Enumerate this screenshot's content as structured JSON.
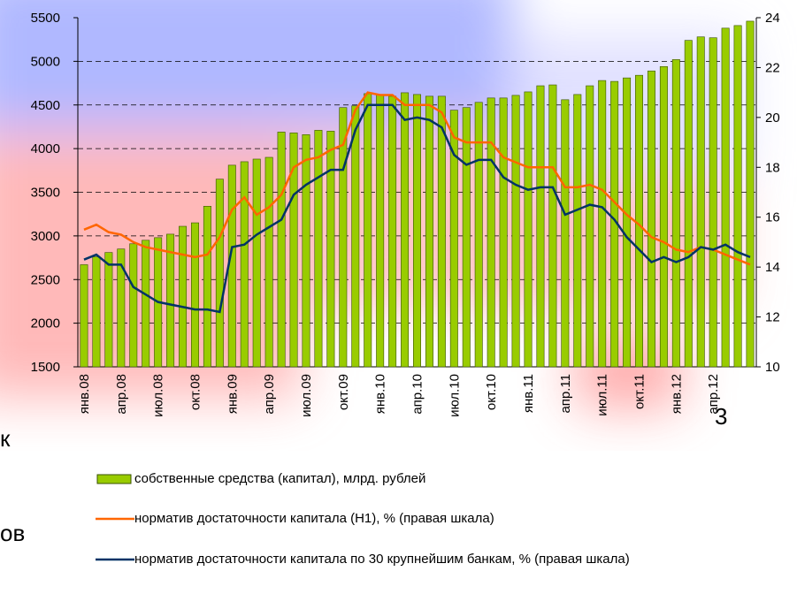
{
  "chart_data": {
    "type": "combo",
    "categories": [
      "янв.08",
      null,
      null,
      "апр.08",
      null,
      null,
      "июл.08",
      null,
      null,
      "окт.08",
      null,
      null,
      "янв.09",
      null,
      null,
      "апр.09",
      null,
      null,
      "июл.09",
      null,
      null,
      "окт.09",
      null,
      null,
      "янв.10",
      null,
      null,
      "апр.10",
      null,
      null,
      "июл.10",
      null,
      null,
      "окт.10",
      null,
      null,
      "янв.11",
      null,
      null,
      "апр.11",
      null,
      null,
      "июл.11",
      null,
      null,
      "окт.11",
      null,
      null,
      "янв.12",
      null,
      null,
      "апр.12",
      null,
      null,
      null
    ],
    "series": [
      {
        "name": "собственные средства (капитал), млрд. рублей",
        "kind": "bar",
        "color": "#99cc00",
        "values": [
          2670,
          2760,
          2810,
          2850,
          2910,
          2950,
          2980,
          3020,
          3110,
          3150,
          3340,
          3650,
          3810,
          3850,
          3880,
          3900,
          4190,
          4180,
          4160,
          4210,
          4200,
          4470,
          4490,
          4630,
          4620,
          4600,
          4640,
          4620,
          4600,
          4600,
          4440,
          4470,
          4530,
          4580,
          4580,
          4610,
          4650,
          4720,
          4730,
          4560,
          4620,
          4720,
          4780,
          4770,
          4810,
          4840,
          4890,
          4940,
          5020,
          5240,
          5280,
          5270,
          5380,
          5410,
          5460
        ]
      },
      {
        "name": "норматив достаточности капитала (Н1), % (правая шкала)",
        "kind": "line",
        "axis": "y2",
        "color": "#ff6600",
        "values": [
          15.5,
          15.7,
          15.4,
          15.3,
          15.0,
          14.8,
          14.7,
          14.6,
          14.5,
          14.4,
          14.5,
          15.2,
          16.3,
          16.8,
          16.1,
          16.4,
          16.9,
          18.0,
          18.3,
          18.4,
          18.7,
          18.9,
          20.3,
          21.0,
          20.9,
          20.9,
          20.5,
          20.5,
          20.5,
          20.2,
          19.2,
          19.0,
          19.0,
          19.0,
          18.4,
          18.2,
          18.0,
          18.0,
          18.0,
          17.2,
          17.2,
          17.3,
          17.1,
          16.6,
          16.1,
          15.7,
          15.2,
          15.0,
          14.7,
          14.6,
          14.8,
          14.7,
          14.5,
          14.3,
          14.1
        ]
      },
      {
        "name": "норматив достаточности капитала по 30 крупнейшим банкам, % (правая шкала)",
        "kind": "line",
        "axis": "y2",
        "color": "#003366",
        "values": [
          14.3,
          14.5,
          14.1,
          14.1,
          13.2,
          12.9,
          12.6,
          12.5,
          12.4,
          12.3,
          12.3,
          12.2,
          14.8,
          14.9,
          15.3,
          15.6,
          15.9,
          16.9,
          17.3,
          17.6,
          17.9,
          17.9,
          19.5,
          20.5,
          20.5,
          20.5,
          19.9,
          20.0,
          19.9,
          19.6,
          18.5,
          18.1,
          18.3,
          18.3,
          17.6,
          17.3,
          17.1,
          17.2,
          17.2,
          16.1,
          16.3,
          16.5,
          16.4,
          15.9,
          15.2,
          14.7,
          14.2,
          14.4,
          14.2,
          14.4,
          14.8,
          14.7,
          14.9,
          14.6,
          14.4
        ]
      }
    ],
    "ylim": [
      1500,
      5500
    ],
    "yticks": [
      1500,
      2000,
      2500,
      3000,
      3500,
      4000,
      4500,
      5000,
      5500
    ],
    "y2lim": [
      10,
      24
    ],
    "y2ticks": [
      10,
      12,
      14,
      16,
      18,
      20,
      22,
      24
    ],
    "grid": true,
    "annotations": [
      "к",
      "ов",
      "3"
    ]
  }
}
